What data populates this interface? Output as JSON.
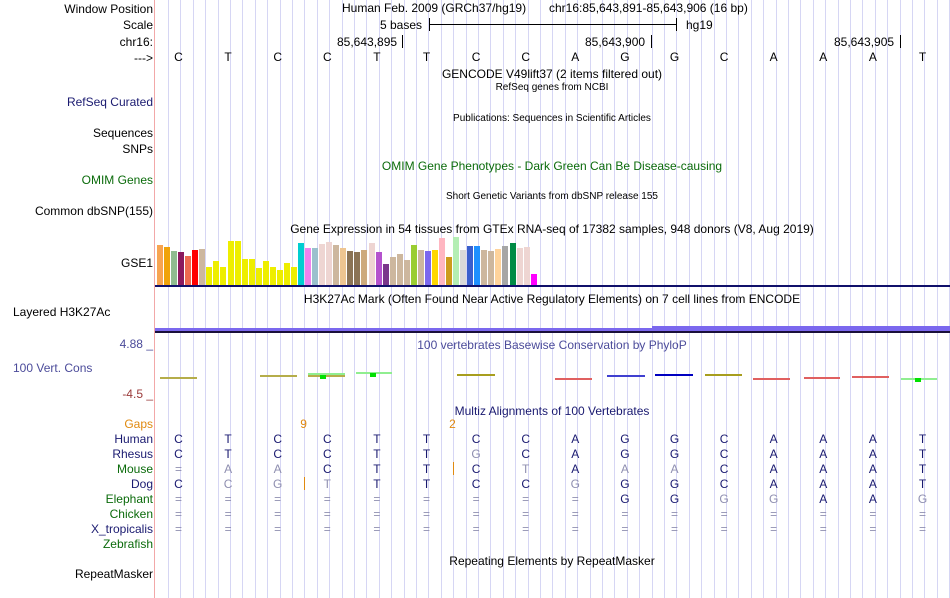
{
  "header": {
    "window_position_label": "Window Position",
    "scale_label": "Scale",
    "chrom_label": "chr16:",
    "strand_label": "--->",
    "assembly": "Human Feb. 2009 (GRCh37/hg19)",
    "position": "chr16:85,643,891-85,643,906 (16 bp)",
    "scale_text": "5 bases",
    "scale_db": "hg19",
    "coords": [
      "85,643,895",
      "85,643,900",
      "85,643,905"
    ]
  },
  "sequence": [
    "C",
    "T",
    "C",
    "C",
    "T",
    "T",
    "C",
    "C",
    "A",
    "G",
    "G",
    "C",
    "A",
    "A",
    "A",
    "T"
  ],
  "tracks": {
    "gencode": {
      "title": "GENCODE V49lift37 (2 items filtered out)"
    },
    "refseq": {
      "label": "RefSeq Curated",
      "title": "RefSeq genes from NCBI"
    },
    "publications": {
      "label": "Sequences",
      "title": "Publications: Sequences in Scientific Articles"
    },
    "snps_label": "SNPs",
    "omim": {
      "label": "OMIM Genes",
      "title": "OMIM Gene Phenotypes - Dark Green Can Be Disease-causing"
    },
    "dbsnp": {
      "label": "Common dbSNP(155)",
      "title": "Short Genetic Variants from dbSNP release 155"
    },
    "gtex": {
      "label": "GSE1",
      "title": "Gene Expression in 54 tissues from GTEx RNA-seq of 17382 samples, 948 donors (V8, Aug 2019)"
    },
    "h3k27ac": {
      "label": "Layered H3K27Ac",
      "title": "H3K27Ac Mark (Often Found Near Active Regulatory Elements) on 7 cell lines from ENCODE"
    },
    "cons": {
      "label": "100 Vert. Cons",
      "title": "100 vertebrates Basewise Conservation by PhyloP",
      "max": "4.88 _",
      "min": "-4.5 _"
    },
    "multiz": {
      "title": "Multiz Alignments of 100 Vertebrates",
      "gaps_label": "Gaps",
      "gaps": [
        {
          "after_base": 3,
          "value": "9"
        },
        {
          "after_base": 6,
          "value": "2"
        }
      ]
    },
    "repeatmasker": {
      "label": "RepeatMasker",
      "title": "Repeating Elements by RepeatMasker"
    }
  },
  "alignment": [
    {
      "species": "Human",
      "color": "navy",
      "bases": [
        "C",
        "T",
        "C",
        "C",
        "T",
        "T",
        "C",
        "C",
        "A",
        "G",
        "G",
        "C",
        "A",
        "A",
        "A",
        "T"
      ],
      "weak": []
    },
    {
      "species": "Rhesus",
      "color": "navy",
      "bases": [
        "C",
        "T",
        "C",
        "C",
        "T",
        "T",
        "G",
        "C",
        "A",
        "G",
        "G",
        "C",
        "A",
        "A",
        "A",
        "T"
      ],
      "weak": [
        6
      ]
    },
    {
      "species": "Mouse",
      "color": "green",
      "bases": [
        "=",
        "A",
        "A",
        "C",
        "T",
        "T",
        "C",
        "T",
        "A",
        "A",
        "A",
        "C",
        "A",
        "A",
        "A",
        "T"
      ],
      "weak": [
        0,
        1,
        2,
        7,
        9,
        10
      ]
    },
    {
      "species": "Dog",
      "color": "navy",
      "bases": [
        "C",
        "C",
        "G",
        "T",
        "T",
        "T",
        "C",
        "C",
        "G",
        "G",
        "G",
        "C",
        "A",
        "A",
        "A",
        "T"
      ],
      "weak": [
        1,
        2,
        3,
        8
      ]
    },
    {
      "species": "Elephant",
      "color": "green",
      "bases": [
        "=",
        "=",
        "=",
        "=",
        "=",
        "=",
        "=",
        "=",
        "=",
        "G",
        "G",
        "G",
        "G",
        "A",
        "A",
        "G"
      ],
      "weak": [
        0,
        1,
        2,
        3,
        4,
        5,
        6,
        7,
        8,
        11,
        12,
        15
      ]
    },
    {
      "species": "Chicken",
      "color": "green",
      "bases": [
        "=",
        "=",
        "=",
        "=",
        "=",
        "=",
        "=",
        "=",
        "=",
        "=",
        "=",
        "=",
        "=",
        "=",
        "=",
        "="
      ],
      "weak": [
        0,
        1,
        2,
        3,
        4,
        5,
        6,
        7,
        8,
        9,
        10,
        11,
        12,
        13,
        14,
        15
      ]
    },
    {
      "species": "X_tropicalis",
      "color": "navy",
      "bases": [
        "=",
        "=",
        "=",
        "=",
        "=",
        "=",
        "=",
        "=",
        "=",
        "=",
        "=",
        "=",
        "=",
        "=",
        "=",
        "="
      ],
      "weak": [
        0,
        1,
        2,
        3,
        4,
        5,
        6,
        7,
        8,
        9,
        10,
        11,
        12,
        13,
        14,
        15
      ]
    },
    {
      "species": "Zebrafish",
      "color": "green",
      "bases": [],
      "weak": []
    }
  ],
  "gtex_bars": [
    {
      "v": 0.82,
      "c": "#f7a452"
    },
    {
      "v": 0.78,
      "c": "#f0a30a"
    },
    {
      "v": 0.7,
      "c": "#8fbc8f"
    },
    {
      "v": 0.68,
      "c": "#8b1a5e"
    },
    {
      "v": 0.6,
      "c": "#ee6a50"
    },
    {
      "v": 0.72,
      "c": "#ff0000"
    },
    {
      "v": 0.74,
      "c": "#cdb79e"
    },
    {
      "v": 0.38,
      "c": "#eeee00"
    },
    {
      "v": 0.5,
      "c": "#eeee00"
    },
    {
      "v": 0.38,
      "c": "#eeee00"
    },
    {
      "v": 0.9,
      "c": "#eeee00"
    },
    {
      "v": 0.9,
      "c": "#eeee00"
    },
    {
      "v": 0.55,
      "c": "#eeee00"
    },
    {
      "v": 0.55,
      "c": "#eeee00"
    },
    {
      "v": 0.36,
      "c": "#eeee00"
    },
    {
      "v": 0.5,
      "c": "#eeee00"
    },
    {
      "v": 0.38,
      "c": "#eeee00"
    },
    {
      "v": 0.32,
      "c": "#eeee00"
    },
    {
      "v": 0.46,
      "c": "#eeee00"
    },
    {
      "v": 0.38,
      "c": "#eeee00"
    },
    {
      "v": 0.86,
      "c": "#00ced1"
    },
    {
      "v": 0.76,
      "c": "#ee82ee"
    },
    {
      "v": 0.76,
      "c": "#9ac0cd"
    },
    {
      "v": 0.84,
      "c": "#eed5d2"
    },
    {
      "v": 0.88,
      "c": "#eed5d2"
    },
    {
      "v": 0.82,
      "c": "#cdb79e"
    },
    {
      "v": 0.76,
      "c": "#eec591"
    },
    {
      "v": 0.7,
      "c": "#8b7355"
    },
    {
      "v": 0.68,
      "c": "#8b7355"
    },
    {
      "v": 0.72,
      "c": "#cdaa7d"
    },
    {
      "v": 0.86,
      "c": "#eed5d2"
    },
    {
      "v": 0.68,
      "c": "#b452cd"
    },
    {
      "v": 0.44,
      "c": "#7a378b"
    },
    {
      "v": 0.58,
      "c": "#cdb79e"
    },
    {
      "v": 0.64,
      "c": "#cdb79e"
    },
    {
      "v": 0.52,
      "c": "#cdb79e"
    },
    {
      "v": 0.82,
      "c": "#9acd32"
    },
    {
      "v": 0.72,
      "c": "#cdb79e"
    },
    {
      "v": 0.7,
      "c": "#7b68ee"
    },
    {
      "v": 0.72,
      "c": "#ffd700"
    },
    {
      "v": 0.96,
      "c": "#ffb6c1"
    },
    {
      "v": 0.58,
      "c": "#cd9b1d"
    },
    {
      "v": 0.98,
      "c": "#b4eeb4"
    },
    {
      "v": 0.72,
      "c": "#d9d9d9"
    },
    {
      "v": 0.8,
      "c": "#3a5fcd"
    },
    {
      "v": 0.8,
      "c": "#1e90ff"
    },
    {
      "v": 0.72,
      "c": "#cdb79e"
    },
    {
      "v": 0.7,
      "c": "#cdb79e"
    },
    {
      "v": 0.74,
      "c": "#ffd39b"
    },
    {
      "v": 0.8,
      "c": "#a6a6a6"
    },
    {
      "v": 0.86,
      "c": "#008b45"
    },
    {
      "v": 0.76,
      "c": "#eed5d2"
    },
    {
      "v": 0.78,
      "c": "#eed5d2"
    },
    {
      "v": 0.24,
      "c": "#ff00ff"
    }
  ]
}
